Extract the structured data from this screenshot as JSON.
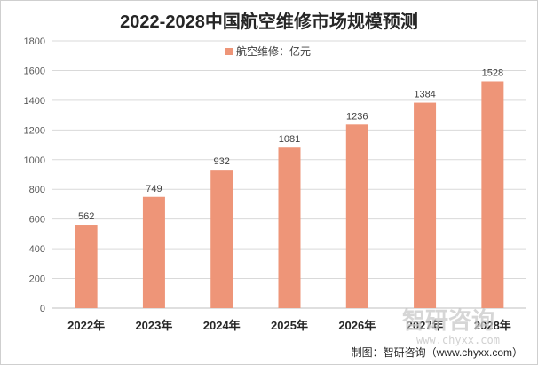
{
  "chart_data": {
    "type": "bar",
    "title": "2022-2028中国航空维修市场规模预测",
    "categories": [
      "2022年",
      "2023年",
      "2024年",
      "2025年",
      "2026年",
      "2027年",
      "2028年"
    ],
    "series": [
      {
        "name": "航空维修：亿元",
        "values": [
          562,
          749,
          932,
          1081,
          1236,
          1384,
          1528
        ],
        "color": "#ee9578"
      }
    ],
    "data_labels": [
      "562",
      "749",
      "932",
      "1081",
      "1236",
      "1384",
      "1528"
    ],
    "ylim": [
      0,
      1800
    ],
    "yticks": [
      0,
      200,
      400,
      600,
      800,
      1000,
      1200,
      1400,
      1600,
      1800
    ],
    "ytick_labels": [
      "0",
      "200",
      "400",
      "600",
      "800",
      "1000",
      "1200",
      "1400",
      "1600",
      "1800"
    ],
    "grid": true,
    "legend_position": "top-center",
    "xlabel": "",
    "ylabel": ""
  },
  "watermark": {
    "text": "智研咨询",
    "sub": "www.chyxx.com"
  },
  "credit": "制图：智研咨询（www.chyxx.com）",
  "colors": {
    "bar": "#ee9578",
    "grid": "#d9d9d9",
    "axis": "#bfbfbf"
  }
}
